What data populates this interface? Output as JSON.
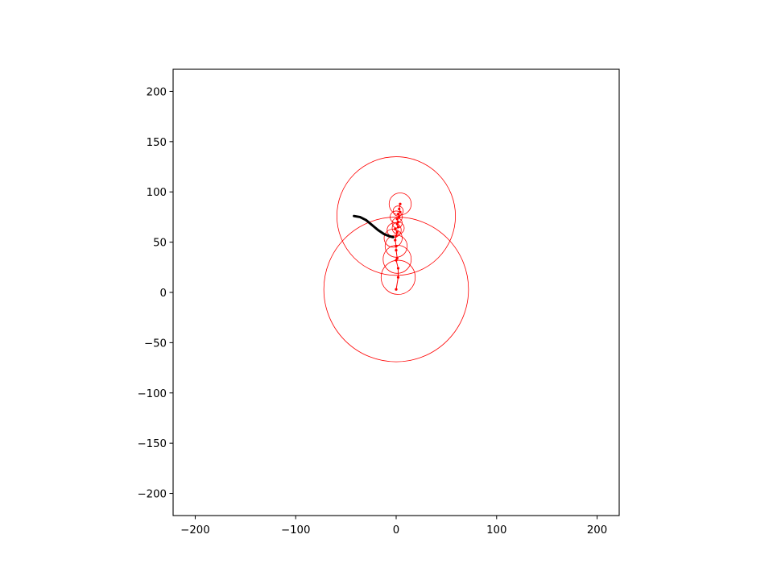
{
  "chart_data": {
    "type": "line",
    "title": "",
    "xlabel": "",
    "ylabel": "",
    "xlim": [
      -222,
      222
    ],
    "ylim": [
      -222,
      222
    ],
    "grid": false,
    "legend": "none",
    "x_ticks": [
      {
        "value": -200,
        "label": "−200"
      },
      {
        "value": -100,
        "label": "−100"
      },
      {
        "value": 0,
        "label": "0"
      },
      {
        "value": 100,
        "label": "100"
      },
      {
        "value": 200,
        "label": "200"
      }
    ],
    "y_ticks": [
      {
        "value": 200,
        "label": "200"
      },
      {
        "value": 150,
        "label": "150"
      },
      {
        "value": 100,
        "label": "100"
      },
      {
        "value": 50,
        "label": "50"
      },
      {
        "value": 0,
        "label": "0"
      },
      {
        "value": -50,
        "label": "−50"
      },
      {
        "value": -100,
        "label": "−100"
      },
      {
        "value": -150,
        "label": "−150"
      },
      {
        "value": -200,
        "label": "−200"
      }
    ],
    "series": [
      {
        "color": "#000000",
        "x": [
          -42,
          -36,
          -30,
          -24,
          -18,
          -12,
          -7,
          -3
        ],
        "y": [
          76,
          75,
          72,
          67,
          62,
          58,
          56,
          55
        ]
      }
    ],
    "circles": {
      "color": "#ff0000",
      "items": [
        {
          "cx": 0,
          "cy": 3,
          "r": 72
        },
        {
          "cx": 0,
          "cy": 76,
          "r": 59
        },
        {
          "cx": 2,
          "cy": 15,
          "r": 17
        },
        {
          "cx": 1,
          "cy": 33,
          "r": 14
        },
        {
          "cx": 0,
          "cy": 46,
          "r": 11
        },
        {
          "cx": -3,
          "cy": 54,
          "r": 9
        },
        {
          "cx": -2,
          "cy": 62,
          "r": 7
        },
        {
          "cx": 2,
          "cy": 64,
          "r": 6
        },
        {
          "cx": 1,
          "cy": 69,
          "r": 5
        },
        {
          "cx": 0,
          "cy": 75,
          "r": 6
        },
        {
          "cx": 2,
          "cy": 81,
          "r": 5
        },
        {
          "cx": 4,
          "cy": 88,
          "r": 11
        }
      ]
    },
    "markers": {
      "color": "#ff0000",
      "points": [
        [
          0,
          3
        ],
        [
          2,
          15
        ],
        [
          2,
          24
        ],
        [
          0,
          32
        ],
        [
          1,
          34
        ],
        [
          0,
          42
        ],
        [
          0,
          46
        ],
        [
          -1,
          52
        ],
        [
          0,
          56
        ],
        [
          1,
          60
        ],
        [
          -1,
          63
        ],
        [
          2,
          65
        ],
        [
          1,
          68
        ],
        [
          2,
          70
        ],
        [
          1,
          73
        ],
        [
          3,
          75
        ],
        [
          2,
          78
        ],
        [
          4,
          80
        ],
        [
          3,
          83
        ],
        [
          4,
          88
        ]
      ]
    }
  }
}
